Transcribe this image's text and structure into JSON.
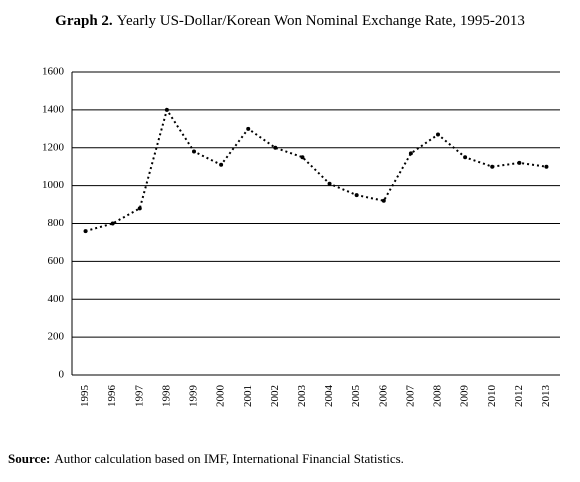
{
  "chart_data": {
    "type": "line",
    "title_prefix": "Graph 2.",
    "title": "Yearly US-Dollar/Korean Won Nominal Exchange Rate, 1995-2013",
    "categories": [
      "1995",
      "1996",
      "1997",
      "1998",
      "1999",
      "2000",
      "2001",
      "2002",
      "2003",
      "2004",
      "2005",
      "2006",
      "2007",
      "2008",
      "2009",
      "2010",
      "2012",
      "2013"
    ],
    "values": [
      760,
      800,
      880,
      1400,
      1180,
      1110,
      1300,
      1200,
      1150,
      1010,
      950,
      920,
      1170,
      1270,
      1150,
      1100,
      1120,
      1100
    ],
    "color": "#000000",
    "ylim": [
      0,
      1600
    ],
    "yticks": [
      0,
      200,
      400,
      600,
      800,
      1000,
      1200,
      1400,
      1600
    ],
    "grid": true,
    "source_label": "Source:",
    "source": "Author calculation based on IMF, International Financial Statistics."
  }
}
